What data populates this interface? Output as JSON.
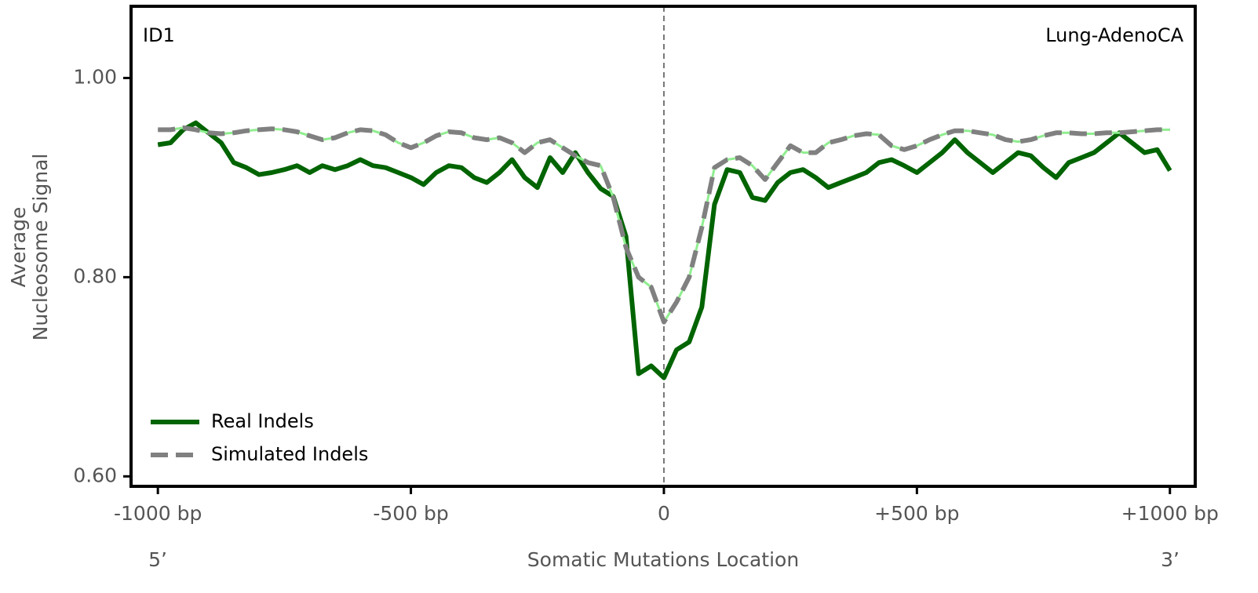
{
  "chart_data": {
    "type": "line",
    "annotations": [
      "ID1",
      "Lung-AdenoCA"
    ],
    "xlabel": "Somatic Mutations Location",
    "xlabel_ends": [
      "5’",
      "3’"
    ],
    "ylabel": [
      "Average",
      "Nucleosome Signal"
    ],
    "x": [
      -1000,
      -975,
      -950,
      -925,
      -900,
      -875,
      -850,
      -825,
      -800,
      -775,
      -750,
      -725,
      -700,
      -675,
      -650,
      -625,
      -600,
      -575,
      -550,
      -525,
      -500,
      -475,
      -450,
      -425,
      -400,
      -375,
      -350,
      -325,
      -300,
      -275,
      -250,
      -225,
      -200,
      -175,
      -150,
      -125,
      -100,
      -75,
      -50,
      -25,
      0,
      25,
      50,
      75,
      100,
      125,
      150,
      175,
      200,
      225,
      250,
      275,
      300,
      325,
      350,
      375,
      400,
      425,
      450,
      475,
      500,
      525,
      550,
      575,
      600,
      625,
      650,
      675,
      700,
      725,
      750,
      775,
      800,
      825,
      850,
      875,
      900,
      925,
      950,
      975,
      1000
    ],
    "series": [
      {
        "name": "Real Indels",
        "color": "#006400",
        "dash": false,
        "values": [
          0.933,
          0.935,
          0.948,
          0.955,
          0.945,
          0.935,
          0.915,
          0.91,
          0.903,
          0.905,
          0.908,
          0.912,
          0.905,
          0.912,
          0.908,
          0.912,
          0.918,
          0.912,
          0.91,
          0.905,
          0.9,
          0.893,
          0.905,
          0.912,
          0.91,
          0.9,
          0.895,
          0.905,
          0.918,
          0.9,
          0.89,
          0.92,
          0.905,
          0.925,
          0.905,
          0.889,
          0.881,
          0.841,
          0.703,
          0.711,
          0.699,
          0.727,
          0.735,
          0.77,
          0.873,
          0.908,
          0.905,
          0.88,
          0.877,
          0.895,
          0.905,
          0.908,
          0.9,
          0.89,
          0.895,
          0.9,
          0.905,
          0.915,
          0.918,
          0.912,
          0.905,
          0.915,
          0.925,
          0.938,
          0.925,
          0.915,
          0.905,
          0.915,
          0.925,
          0.922,
          0.91,
          0.9,
          0.915,
          0.92,
          0.925,
          0.935,
          0.945,
          0.935,
          0.925,
          0.928,
          0.907
        ]
      },
      {
        "name": "Simulated Indels",
        "color": "#808080",
        "dash": true,
        "gap_color": "#90ee90",
        "values": [
          0.948,
          0.948,
          0.95,
          0.948,
          0.945,
          0.944,
          0.945,
          0.947,
          0.948,
          0.949,
          0.948,
          0.946,
          0.942,
          0.938,
          0.94,
          0.945,
          0.948,
          0.947,
          0.943,
          0.935,
          0.93,
          0.935,
          0.942,
          0.946,
          0.945,
          0.94,
          0.938,
          0.94,
          0.935,
          0.925,
          0.935,
          0.938,
          0.93,
          0.922,
          0.915,
          0.912,
          0.88,
          0.83,
          0.8,
          0.79,
          0.755,
          0.775,
          0.8,
          0.85,
          0.91,
          0.918,
          0.92,
          0.912,
          0.898,
          0.915,
          0.932,
          0.925,
          0.925,
          0.935,
          0.938,
          0.942,
          0.944,
          0.943,
          0.932,
          0.928,
          0.932,
          0.938,
          0.943,
          0.947,
          0.947,
          0.945,
          0.943,
          0.938,
          0.936,
          0.938,
          0.942,
          0.945,
          0.945,
          0.944,
          0.944,
          0.945,
          0.945,
          0.946,
          0.947,
          0.948,
          0.948
        ]
      }
    ],
    "xlim": [
      -1053,
      1050
    ],
    "ylim": [
      0.59,
      1.072
    ],
    "xticks": [
      {
        "value": -1000,
        "label": "-1000 bp"
      },
      {
        "value": -500,
        "label": "-500 bp"
      },
      0,
      {
        "value": 500,
        "label": "+500 bp"
      },
      {
        "value": 1000,
        "label": "+1000 bp"
      }
    ],
    "yticks": [
      {
        "value": 0.6,
        "label": "0.60"
      },
      {
        "value": 0.8,
        "label": "0.80"
      },
      {
        "value": 1.0,
        "label": "1.00"
      }
    ],
    "vline": 0,
    "legend": "lower left",
    "grid": false
  }
}
